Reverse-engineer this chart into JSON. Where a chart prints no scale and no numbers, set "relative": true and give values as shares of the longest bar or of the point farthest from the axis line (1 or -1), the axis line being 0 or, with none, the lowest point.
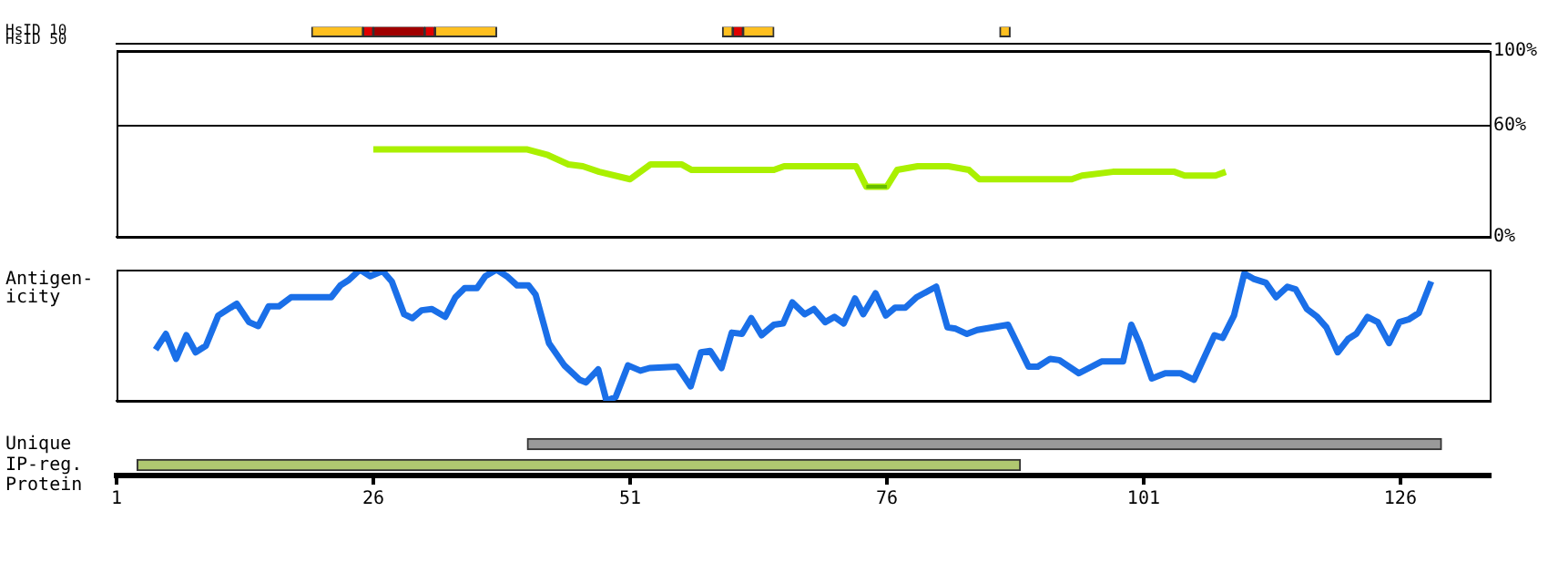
{
  "chart_data": [
    {
      "type": "bar",
      "orientation": "horizontal",
      "categories": [
        "HsID 10",
        "HsID 50"
      ],
      "xlim": [
        1,
        134.7
      ],
      "tick_labels": "y",
      "series": [
        {
          "color": "#ffc020",
          "base": [
            20,
            null
          ],
          "values": [
            5,
            null
          ]
        },
        {
          "color": "#e00000",
          "base": [
            25,
            null
          ],
          "values": [
            1,
            null
          ]
        },
        {
          "color": "#a00000",
          "base": [
            26,
            null
          ],
          "values": [
            5,
            null
          ]
        },
        {
          "color": "#e00000",
          "base": [
            31,
            null
          ],
          "values": [
            1,
            null
          ]
        },
        {
          "color": "#ffc020",
          "base": [
            32,
            null
          ],
          "values": [
            6,
            null
          ]
        },
        {
          "color": "#ffc020",
          "base": [
            60,
            null
          ],
          "values": [
            1,
            null
          ]
        },
        {
          "color": "#e00000",
          "base": [
            61,
            null
          ],
          "values": [
            1,
            null
          ]
        },
        {
          "color": "#ffc020",
          "base": [
            62,
            null
          ],
          "values": [
            3,
            null
          ]
        },
        {
          "color": "#ffc020",
          "base": [
            87,
            null
          ],
          "values": [
            1,
            null
          ]
        }
      ]
    },
    {
      "type": "line",
      "xlim": [
        1,
        134.7
      ],
      "ylim": [
        0,
        100
      ],
      "yticks": [
        {
          "value": 0,
          "label": "0%"
        },
        {
          "value": 60,
          "label": "60%"
        },
        {
          "value": 100,
          "label": "100%"
        }
      ],
      "tick_labels": "y",
      "grid": "y",
      "series": [
        {
          "color": "#aaf000",
          "x": [
            26,
            41,
            43,
            45,
            46.4,
            48,
            51,
            53,
            56,
            57,
            65,
            66,
            73,
            74,
            76,
            77,
            79,
            82,
            84,
            85,
            94,
            95,
            98,
            104,
            105,
            108,
            109
          ],
          "values": [
            47,
            47,
            44,
            39,
            38,
            35,
            31,
            39,
            39,
            36,
            36,
            38,
            38,
            27,
            27,
            36,
            38,
            38,
            36,
            31,
            31,
            33,
            35,
            35,
            33,
            33,
            35
          ]
        },
        {
          "color": "#66bb00",
          "x": [
            74,
            76
          ],
          "values": [
            27,
            27
          ]
        }
      ]
    },
    {
      "type": "line",
      "ylabel": "Antigen-\nicity",
      "relative": true,
      "xlim": [
        1,
        134.7
      ],
      "tick_labels": false,
      "color": "#1a6fe8",
      "x": [
        4.8,
        5.8,
        6.8,
        7.8,
        8.7,
        9.7,
        10.9,
        12.7,
        13.9,
        14.8,
        15.8,
        16.8,
        18.0,
        21.9,
        22.8,
        23.6,
        24.7,
        25.7,
        26.9,
        27.8,
        29.0,
        29.8,
        30.7,
        31.7,
        33.0,
        34.0,
        34.9,
        36.1,
        36.9,
        38.0,
        39.0,
        40.0,
        41.1,
        41.8,
        43.1,
        44.6,
        46.1,
        46.7,
        47.9,
        48.7,
        49.6,
        50.8,
        52.0,
        52.9,
        55.6,
        56.9,
        57.9,
        58.8,
        59.9,
        60.9,
        61.9,
        62.8,
        63.8,
        65.0,
        65.9,
        66.8,
        68.0,
        68.9,
        70.0,
        70.9,
        71.8,
        72.9,
        73.7,
        74.9,
        75.9,
        76.8,
        77.8,
        78.9,
        80.8,
        81.9,
        82.7,
        83.8,
        84.8,
        87.8,
        89.8,
        90.7,
        91.9,
        92.8,
        94.7,
        96.9,
        99.0,
        99.8,
        100.6,
        101.8,
        103.1,
        104.6,
        105.9,
        107.9,
        108.7,
        109.8,
        110.8,
        111.7,
        112.9,
        113.9,
        115.0,
        115.8,
        116.9,
        117.9,
        118.8,
        119.9,
        120.9,
        121.7,
        122.8,
        123.8,
        124.9,
        125.9,
        126.8,
        127.8,
        129.0
      ],
      "values": [
        0.39,
        0.51,
        0.32,
        0.5,
        0.37,
        0.42,
        0.65,
        0.74,
        0.6,
        0.57,
        0.72,
        0.72,
        0.79,
        0.79,
        0.88,
        0.92,
        1.0,
        0.95,
        0.99,
        0.91,
        0.66,
        0.63,
        0.69,
        0.7,
        0.64,
        0.79,
        0.86,
        0.86,
        0.95,
        1.0,
        0.95,
        0.88,
        0.88,
        0.81,
        0.44,
        0.27,
        0.16,
        0.14,
        0.24,
        0.0,
        0.03,
        0.27,
        0.23,
        0.25,
        0.26,
        0.11,
        0.37,
        0.38,
        0.25,
        0.52,
        0.51,
        0.63,
        0.5,
        0.58,
        0.59,
        0.75,
        0.66,
        0.7,
        0.6,
        0.64,
        0.59,
        0.78,
        0.66,
        0.82,
        0.65,
        0.71,
        0.71,
        0.79,
        0.87,
        0.56,
        0.55,
        0.51,
        0.54,
        0.58,
        0.26,
        0.26,
        0.32,
        0.31,
        0.21,
        0.3,
        0.3,
        0.58,
        0.44,
        0.17,
        0.21,
        0.21,
        0.16,
        0.5,
        0.48,
        0.65,
        0.97,
        0.93,
        0.9,
        0.79,
        0.87,
        0.85,
        0.7,
        0.64,
        0.56,
        0.37,
        0.47,
        0.51,
        0.64,
        0.6,
        0.44,
        0.6,
        0.62,
        0.67,
        0.91
      ]
    },
    {
      "type": "bar",
      "orientation": "horizontal",
      "categories": [
        "Unique",
        "IP-reg."
      ],
      "xlim": [
        1,
        134.7
      ],
      "xticks": [
        1,
        26,
        51,
        76,
        101,
        126
      ],
      "xlabel": "Protein",
      "series": [
        {
          "color": "#999999",
          "base": [
            41,
            null
          ],
          "values": [
            89,
            null
          ]
        },
        {
          "color": "#b0c870",
          "base": [
            null,
            3
          ],
          "values": [
            null,
            86
          ]
        }
      ]
    }
  ]
}
